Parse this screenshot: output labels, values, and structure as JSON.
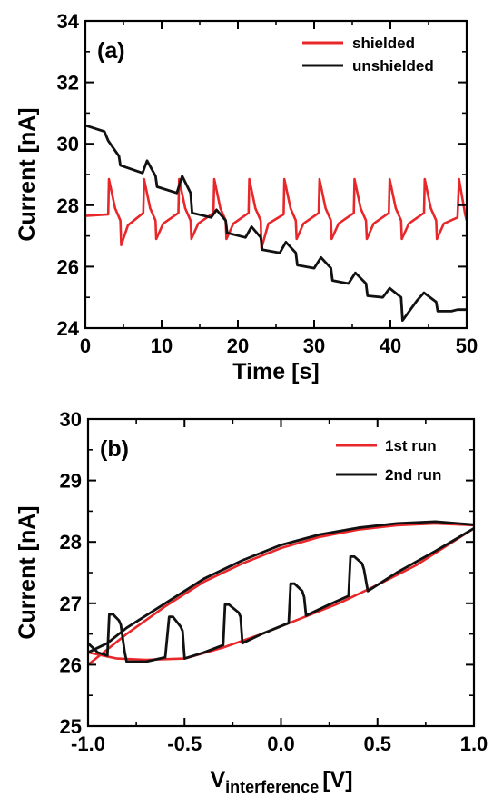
{
  "chart_data": [
    {
      "type": "line",
      "panel_label": "(a)",
      "xlabel": "Time [s]",
      "ylabel": "Current [nA]",
      "xlim": [
        0,
        50
      ],
      "ylim": [
        24,
        34
      ],
      "x_ticks": [
        "0",
        "10",
        "20",
        "30",
        "40",
        "50"
      ],
      "y_ticks": [
        "24",
        "26",
        "28",
        "30",
        "32",
        "34"
      ],
      "grid": false,
      "legend_position": "top-right",
      "series": [
        {
          "name": "shielded",
          "color": "#e8272a",
          "x": [
            0,
            3.0,
            3.1,
            3.9,
            4.6,
            4.7,
            5.6,
            7.6,
            7.7,
            8.5,
            9.2,
            9.3,
            10.2,
            12.2,
            12.3,
            13.1,
            13.8,
            13.9,
            14.8,
            16.8,
            16.9,
            17.7,
            18.4,
            18.5,
            19.4,
            21.4,
            21.5,
            22.3,
            23.0,
            23.1,
            24.0,
            26.0,
            26.1,
            26.9,
            27.6,
            27.7,
            28.6,
            30.6,
            30.7,
            31.5,
            32.2,
            32.3,
            33.2,
            35.2,
            35.3,
            36.1,
            36.8,
            36.9,
            37.8,
            39.8,
            39.9,
            40.7,
            41.4,
            41.5,
            42.4,
            44.4,
            44.5,
            45.3,
            46.0,
            46.1,
            47.0,
            48.8,
            49.0,
            49.8,
            50.0
          ],
          "values": [
            27.65,
            27.7,
            28.85,
            27.9,
            27.5,
            26.7,
            27.35,
            27.75,
            28.85,
            27.9,
            27.5,
            26.9,
            27.4,
            27.75,
            28.85,
            27.9,
            27.5,
            26.9,
            27.4,
            27.75,
            28.85,
            27.9,
            27.5,
            26.9,
            27.4,
            27.75,
            28.85,
            27.9,
            27.5,
            26.6,
            27.4,
            27.7,
            28.85,
            27.9,
            27.5,
            26.9,
            27.4,
            27.75,
            28.85,
            27.9,
            27.5,
            26.9,
            27.4,
            27.75,
            28.85,
            27.9,
            27.5,
            26.9,
            27.4,
            27.75,
            28.85,
            27.9,
            27.5,
            26.9,
            27.4,
            27.75,
            28.85,
            27.9,
            27.5,
            26.9,
            27.4,
            27.6,
            28.85,
            27.7,
            27.5
          ]
        },
        {
          "name": "unshielded",
          "color": "#111111",
          "x": [
            0,
            2.5,
            3.0,
            4.4,
            4.6,
            7.5,
            8.1,
            9.2,
            9.4,
            12.0,
            12.7,
            13.8,
            14.0,
            16.5,
            17.2,
            18.4,
            18.6,
            21.0,
            21.8,
            23.0,
            23.2,
            25.5,
            26.3,
            27.6,
            27.8,
            30.0,
            30.9,
            32.2,
            32.4,
            34.5,
            35.4,
            36.8,
            37.0,
            39.0,
            39.9,
            41.4,
            41.6,
            43.5,
            44.4,
            46.0,
            46.2,
            48.0,
            48.8,
            50.0
          ],
          "values": [
            30.6,
            30.4,
            30.1,
            29.6,
            29.3,
            29.05,
            29.45,
            28.95,
            28.6,
            28.4,
            28.95,
            28.4,
            27.75,
            27.6,
            27.85,
            27.5,
            27.1,
            26.95,
            27.3,
            26.95,
            26.55,
            26.45,
            26.8,
            26.45,
            26.05,
            25.95,
            26.3,
            25.95,
            25.55,
            25.45,
            25.8,
            25.45,
            25.05,
            25.0,
            25.3,
            25.0,
            24.25,
            24.9,
            25.15,
            24.85,
            24.55,
            24.55,
            24.6,
            24.6
          ]
        }
      ]
    },
    {
      "type": "line",
      "panel_label": "(b)",
      "xlabel_main": "V",
      "xlabel_sub": "interference",
      "xlabel_unit": "[V]",
      "ylabel": "Current [nA]",
      "xlim": [
        -1.0,
        1.0
      ],
      "ylim": [
        25,
        30
      ],
      "x_ticks": [
        "-1.0",
        "-0.5",
        "0.0",
        "0.5",
        "1.0"
      ],
      "y_ticks": [
        "25",
        "26",
        "27",
        "28",
        "29",
        "30"
      ],
      "grid": false,
      "legend_position": "top-right",
      "series": [
        {
          "name": "1st run",
          "color": "#e8272a",
          "upper_sweep": {
            "x": [
              -1.0,
              -0.9,
              -0.8,
              -0.6,
              -0.4,
              -0.2,
              0.0,
              0.2,
              0.4,
              0.6,
              0.8,
              1.0
            ],
            "values": [
              26.0,
              26.25,
              26.5,
              26.95,
              27.35,
              27.65,
              27.9,
              28.08,
              28.2,
              28.27,
              28.3,
              28.27
            ]
          },
          "lower_sweep": {
            "x": [
              -1.0,
              -0.85,
              -0.7,
              -0.5,
              -0.3,
              -0.1,
              0.1,
              0.3,
              0.5,
              0.7,
              0.85,
              1.0
            ],
            "values": [
              26.2,
              26.1,
              26.08,
              26.1,
              26.28,
              26.5,
              26.75,
              27.0,
              27.3,
              27.62,
              27.92,
              28.22
            ]
          }
        },
        {
          "name": "2nd run",
          "color": "#111111",
          "upper_sweep": {
            "x": [
              -1.0,
              -0.9,
              -0.8,
              -0.6,
              -0.4,
              -0.2,
              0.0,
              0.2,
              0.4,
              0.6,
              0.8,
              1.0
            ],
            "values": [
              26.2,
              26.35,
              26.6,
              27.0,
              27.4,
              27.7,
              27.95,
              28.12,
              28.23,
              28.3,
              28.33,
              28.28
            ]
          },
          "lower_sweep": {
            "x": [
              -1.0,
              -0.95,
              -0.9,
              -0.89,
              -0.87,
              -0.84,
              -0.83,
              -0.81,
              -0.8,
              -0.7,
              -0.6,
              -0.58,
              -0.56,
              -0.52,
              -0.51,
              -0.5,
              -0.4,
              -0.3,
              -0.29,
              -0.27,
              -0.22,
              -0.21,
              -0.2,
              -0.1,
              0.04,
              0.05,
              0.07,
              0.11,
              0.12,
              0.13,
              0.25,
              0.35,
              0.36,
              0.38,
              0.42,
              0.43,
              0.45,
              0.6,
              0.8,
              1.0
            ],
            "values": [
              26.35,
              26.2,
              26.15,
              26.82,
              26.82,
              26.72,
              26.65,
              26.2,
              26.05,
              26.05,
              26.12,
              26.78,
              26.78,
              26.62,
              26.55,
              26.1,
              26.2,
              26.32,
              26.98,
              26.98,
              26.85,
              26.78,
              26.35,
              26.5,
              26.68,
              27.32,
              27.32,
              27.2,
              27.1,
              26.8,
              26.98,
              27.12,
              27.76,
              27.76,
              27.65,
              27.55,
              27.2,
              27.5,
              27.85,
              28.22
            ]
          }
        }
      ]
    }
  ]
}
